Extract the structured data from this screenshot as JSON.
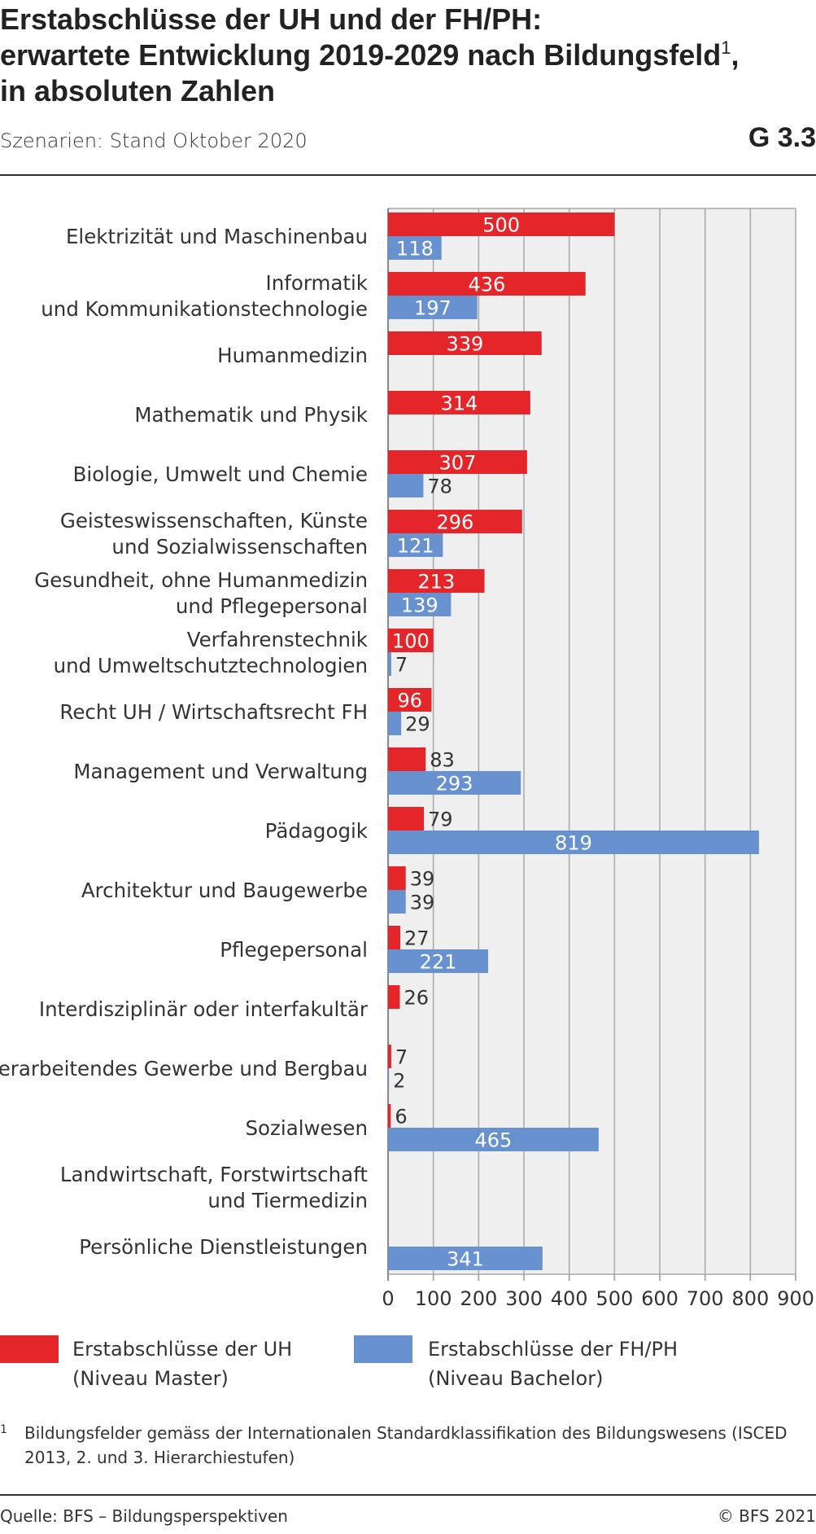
{
  "header": {
    "title_line1": "Erstabschlüsse der UH und der FH/PH:",
    "title_line2": "erwartete Entwicklung 2019-2029 nach Bildungsfeld",
    "title_sup": "1",
    "title_line2_end": ",",
    "title_line3": "in absoluten Zahlen",
    "subtitle": "Szenarien: Stand Oktober 2020",
    "graphic_number": "G 3.3"
  },
  "chart_data": {
    "type": "bar",
    "orientation": "horizontal",
    "categories": [
      [
        "Elektrizität und Maschinenbau"
      ],
      [
        "Informatik",
        "und Kommunikationstechnologie"
      ],
      [
        "Humanmedizin"
      ],
      [
        "Mathematik und Physik"
      ],
      [
        "Biologie, Umwelt und Chemie"
      ],
      [
        "Geisteswissenschaften, Künste",
        "und Sozialwissenschaften"
      ],
      [
        "Gesundheit, ohne Humanmedizin",
        "und Pflegepersonal"
      ],
      [
        "Verfahrenstechnik",
        "und Umweltschutztechnologien"
      ],
      [
        "Recht UH / Wirtschaftsrecht FH"
      ],
      [
        "Management und Verwaltung"
      ],
      [
        "Pädagogik"
      ],
      [
        "Architektur und Baugewerbe"
      ],
      [
        "Pflegepersonal"
      ],
      [
        "Interdisziplinär oder interfakultär"
      ],
      [
        "Verarbeitendes Gewerbe und Bergbau"
      ],
      [
        "Sozialwesen"
      ],
      [
        "Landwirtschaft, Forstwirtschaft",
        "und Tiermedizin"
      ],
      [
        "Persönliche Dienstleistungen"
      ]
    ],
    "series": [
      {
        "name": "Erstabschlüsse der UH (Niveau Master)",
        "color": "#e4262b",
        "values": [
          500,
          436,
          339,
          314,
          307,
          296,
          213,
          100,
          96,
          83,
          79,
          39,
          27,
          26,
          7,
          6,
          null,
          null
        ]
      },
      {
        "name": "Erstabschlüsse der FH/PH (Niveau Bachelor)",
        "color": "#6792cf",
        "values": [
          118,
          197,
          null,
          null,
          78,
          121,
          139,
          7,
          29,
          293,
          819,
          39,
          221,
          null,
          2,
          465,
          null,
          341
        ]
      }
    ],
    "xlim": [
      0,
      900
    ],
    "xticks": [
      0,
      100,
      200,
      300,
      400,
      500,
      600,
      700,
      800,
      900
    ],
    "grid": true,
    "plot_background": "#efefef",
    "grid_color": "#a8a8a8",
    "legend_position": "bottom"
  },
  "legend": {
    "uh_line1": "Erstabschlüsse der UH",
    "uh_line2": "(Niveau Master)",
    "fh_line1": "Erstabschlüsse der FH/PH",
    "fh_line2": "(Niveau Bachelor)",
    "uh_color": "#e4262b",
    "fh_color": "#6792cf"
  },
  "footnote": {
    "mark": "1",
    "text": "Bildungsfelder gemäss der Internationalen Standardklassifikation des Bildungswesens (ISCED 2013, 2. und 3. Hierarchiestufen)"
  },
  "footer": {
    "source": "Quelle: BFS – Bildungsperspektiven",
    "copyright": "© BFS 2021"
  }
}
